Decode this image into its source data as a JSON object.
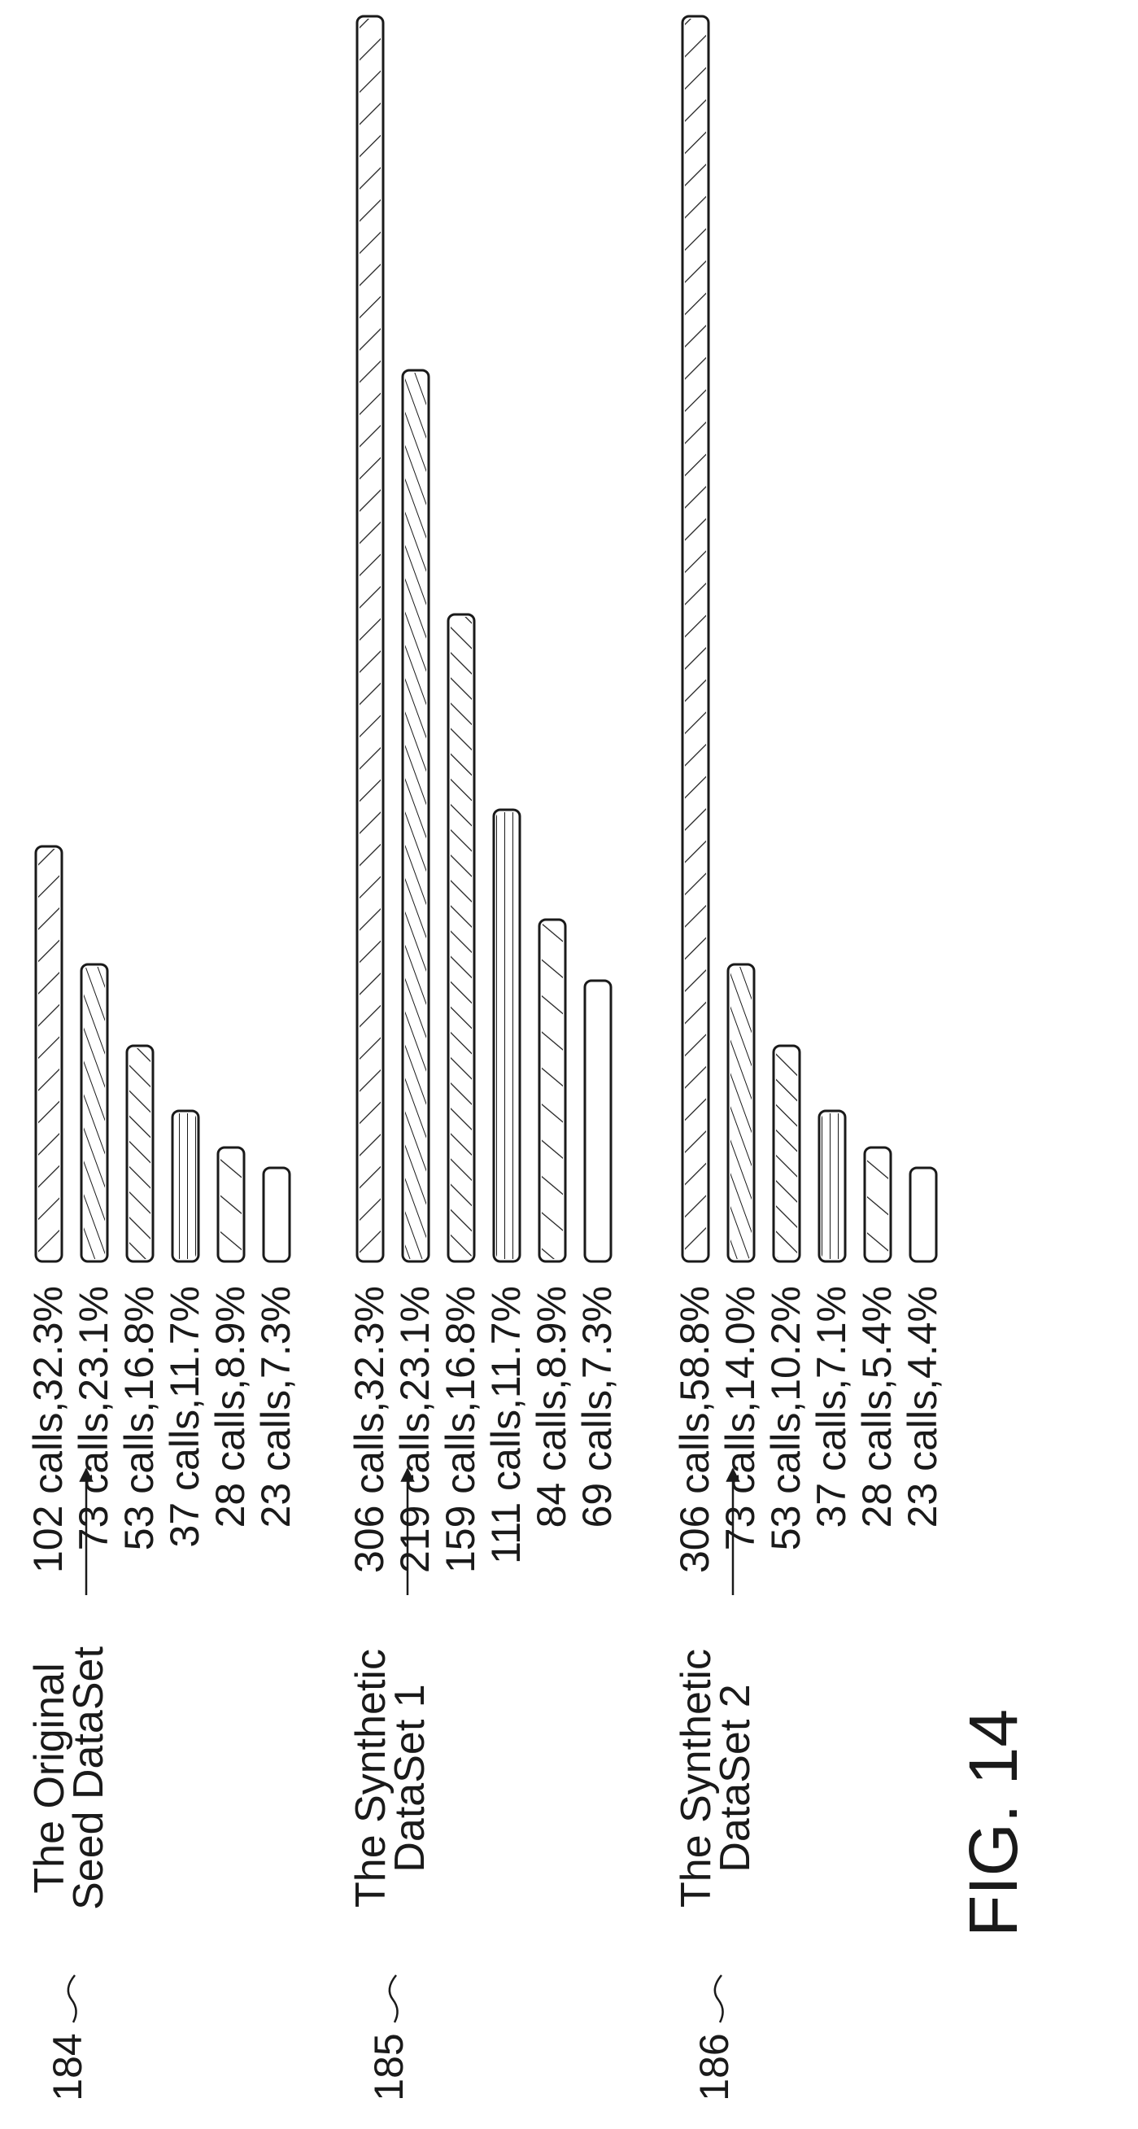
{
  "figure": {
    "caption": "FIG. 14"
  },
  "chart_data": {
    "type": "bar",
    "orientation": "horizontal-bars-rotated-page",
    "groups": [
      {
        "ref": "184",
        "label_lines": [
          "The Original",
          "Seed DataSet"
        ],
        "bars": [
          {
            "label": "102 calls,32.3%",
            "calls": 102,
            "percent": 32.3
          },
          {
            "label": "73 calls,23.1%",
            "calls": 73,
            "percent": 23.1
          },
          {
            "label": "53 calls,16.8%",
            "calls": 53,
            "percent": 16.8
          },
          {
            "label": "37 calls,11.7%",
            "calls": 37,
            "percent": 11.7
          },
          {
            "label": "28 calls,8.9%",
            "calls": 28,
            "percent": 8.9
          },
          {
            "label": "23 calls,7.3%",
            "calls": 23,
            "percent": 7.3
          }
        ]
      },
      {
        "ref": "185",
        "label_lines": [
          "The Synthetic",
          "DataSet 1"
        ],
        "bars": [
          {
            "label": "306 calls,32.3%",
            "calls": 306,
            "percent": 32.3
          },
          {
            "label": "219 calls,23.1%",
            "calls": 219,
            "percent": 23.1
          },
          {
            "label": "159 calls,16.8%",
            "calls": 159,
            "percent": 16.8
          },
          {
            "label": "111 calls,11.7%",
            "calls": 111,
            "percent": 11.7
          },
          {
            "label": "84 calls,8.9%",
            "calls": 84,
            "percent": 8.9
          },
          {
            "label": "69 calls,7.3%",
            "calls": 69,
            "percent": 7.3
          }
        ]
      },
      {
        "ref": "186",
        "label_lines": [
          "The Synthetic",
          "DataSet 2"
        ],
        "bars": [
          {
            "label": "306 calls,58.8%",
            "calls": 306,
            "percent": 58.8
          },
          {
            "label": "73 calls,14.0%",
            "calls": 73,
            "percent": 14.0
          },
          {
            "label": "53 calls,10.2%",
            "calls": 53,
            "percent": 10.2
          },
          {
            "label": "37 calls,7.1%",
            "calls": 37,
            "percent": 7.1
          },
          {
            "label": "28 calls,5.4%",
            "calls": 28,
            "percent": 5.4
          },
          {
            "label": "23 calls,4.4%",
            "calls": 23,
            "percent": 4.4
          }
        ]
      }
    ],
    "value_max": 306,
    "grid": false,
    "legend": "none"
  }
}
